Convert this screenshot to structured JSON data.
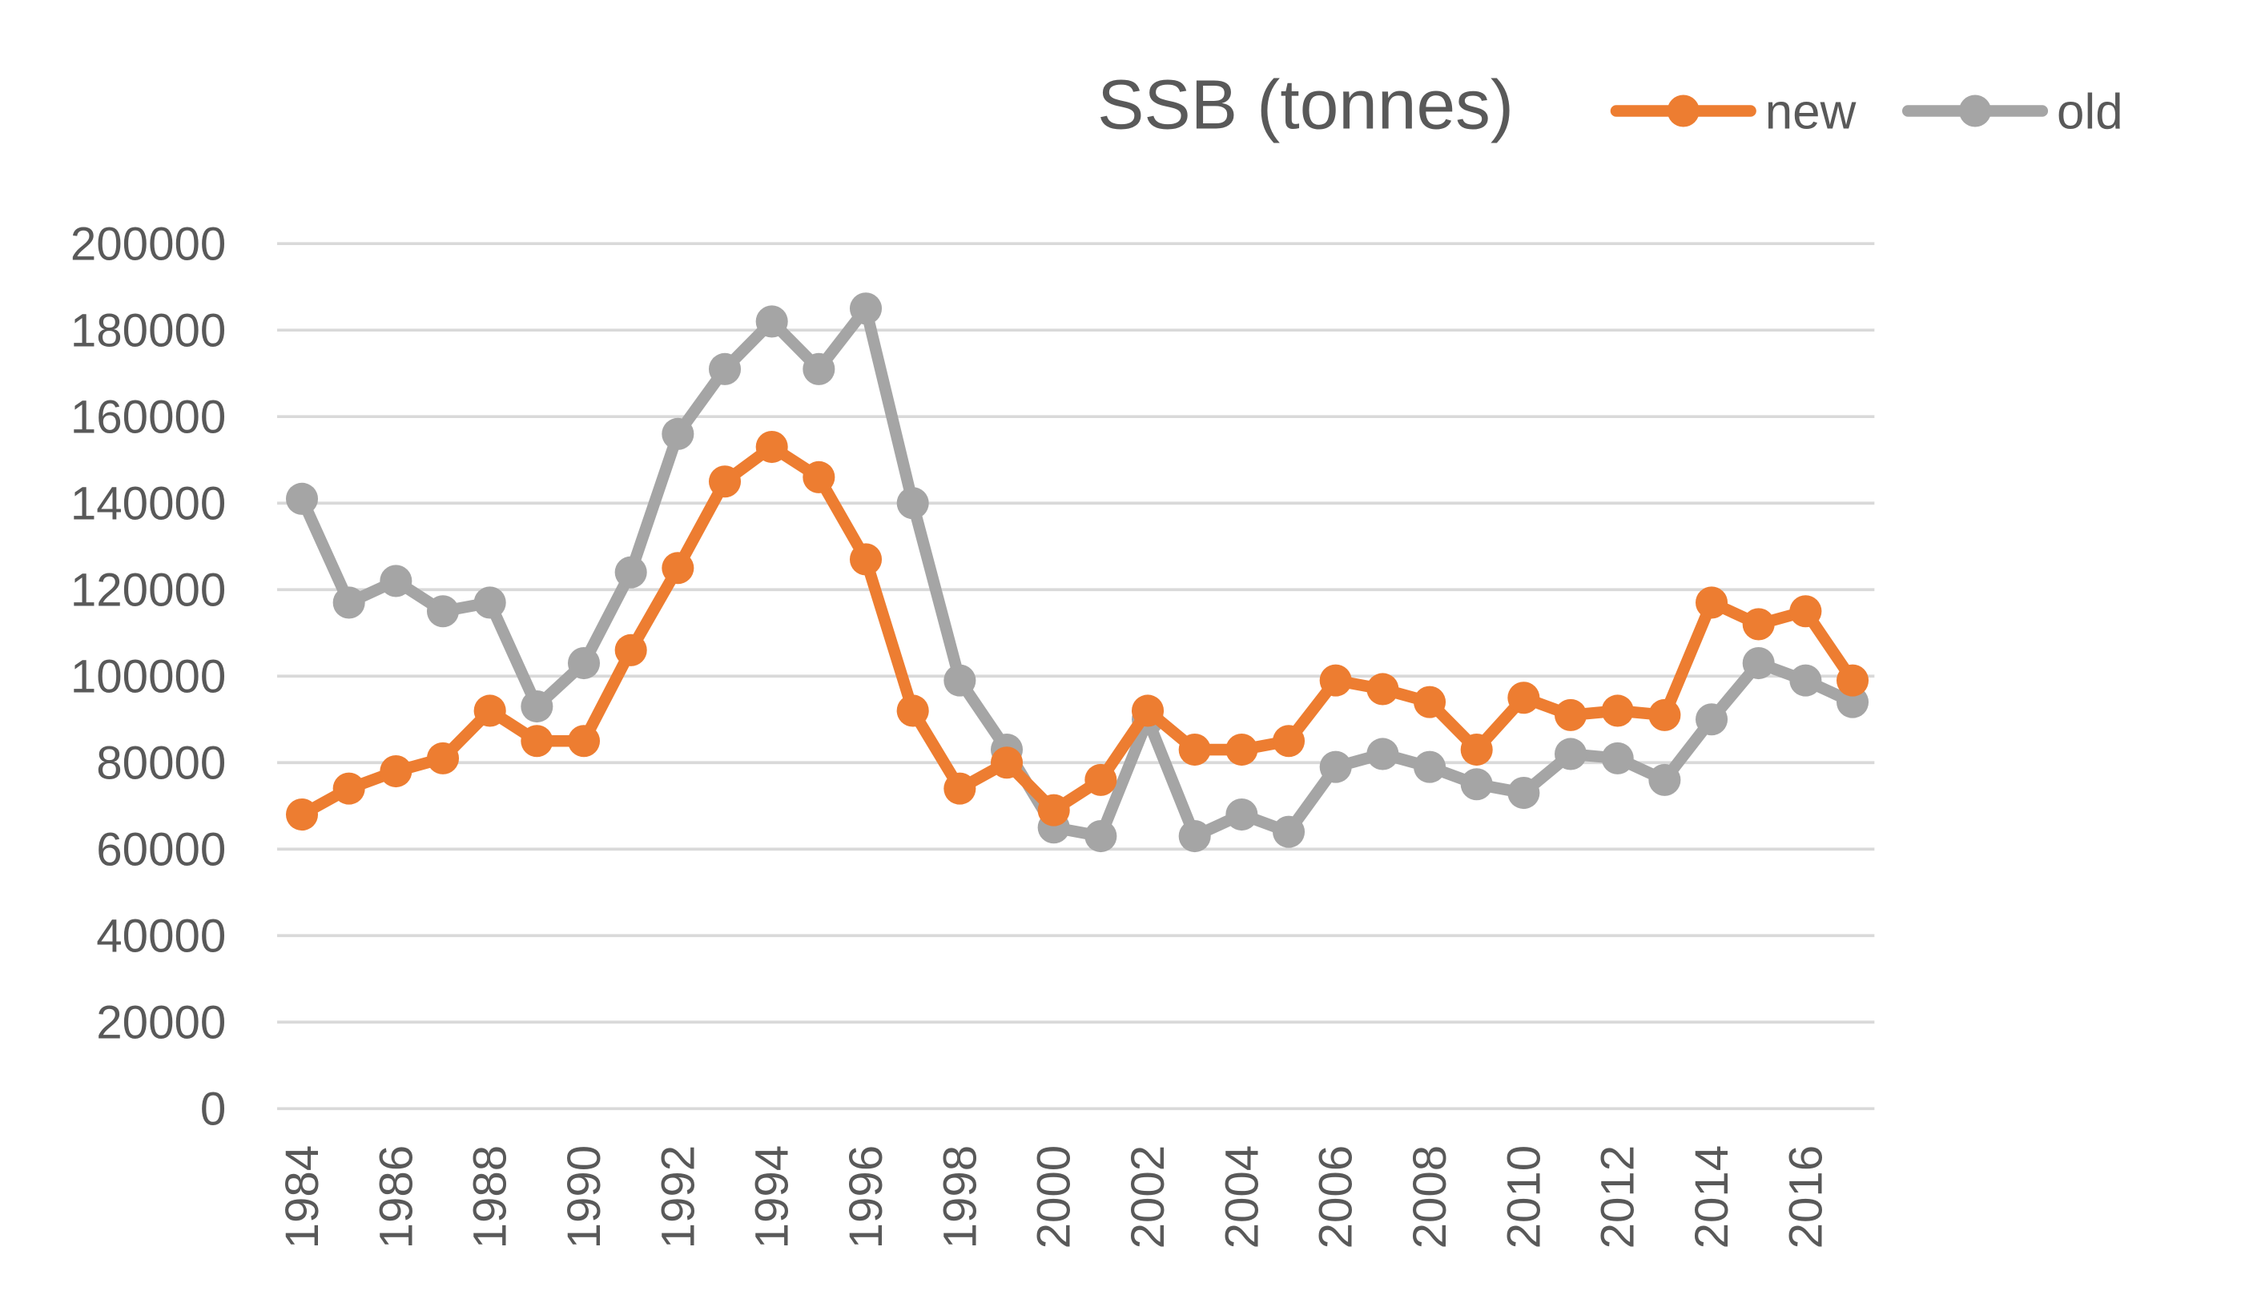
{
  "chart_data": {
    "type": "line",
    "title": "SSB (tonnes)",
    "xlabel": "",
    "ylabel": "",
    "ylim": [
      0,
      200000
    ],
    "yticks": [
      0,
      20000,
      40000,
      60000,
      80000,
      100000,
      120000,
      140000,
      160000,
      180000,
      200000
    ],
    "x": [
      1984,
      1985,
      1986,
      1987,
      1988,
      1989,
      1990,
      1991,
      1992,
      1993,
      1994,
      1995,
      1996,
      1997,
      1998,
      1999,
      2000,
      2001,
      2002,
      2003,
      2004,
      2005,
      2006,
      2007,
      2008,
      2009,
      2010,
      2011,
      2012,
      2013,
      2014,
      2015,
      2016,
      2017
    ],
    "xtick_labels": [
      "1984",
      "1986",
      "1988",
      "1990",
      "1992",
      "1994",
      "1996",
      "1998",
      "2000",
      "2002",
      "2004",
      "2006",
      "2008",
      "2010",
      "2012",
      "2014",
      "2016"
    ],
    "grid": true,
    "legend_position": "top-right",
    "series": [
      {
        "name": "new",
        "color": "#ED7D31",
        "values": [
          68000,
          74000,
          78000,
          81000,
          92000,
          85000,
          85000,
          106000,
          125000,
          145000,
          153000,
          146000,
          127000,
          92000,
          74000,
          80000,
          69000,
          76000,
          92000,
          83000,
          83000,
          85000,
          99000,
          97000,
          94000,
          83000,
          95000,
          91000,
          92000,
          91000,
          117000,
          112000,
          115000,
          99000
        ]
      },
      {
        "name": "old",
        "color": "#A5A5A5",
        "values": [
          141000,
          117000,
          122000,
          115000,
          117000,
          93000,
          103000,
          124000,
          156000,
          171000,
          182000,
          171000,
          185000,
          140000,
          99000,
          83000,
          65000,
          63000,
          90000,
          63000,
          68000,
          64000,
          79000,
          82000,
          79000,
          75000,
          73000,
          82000,
          81000,
          76000,
          90000,
          103000,
          99000,
          94000
        ]
      }
    ]
  }
}
